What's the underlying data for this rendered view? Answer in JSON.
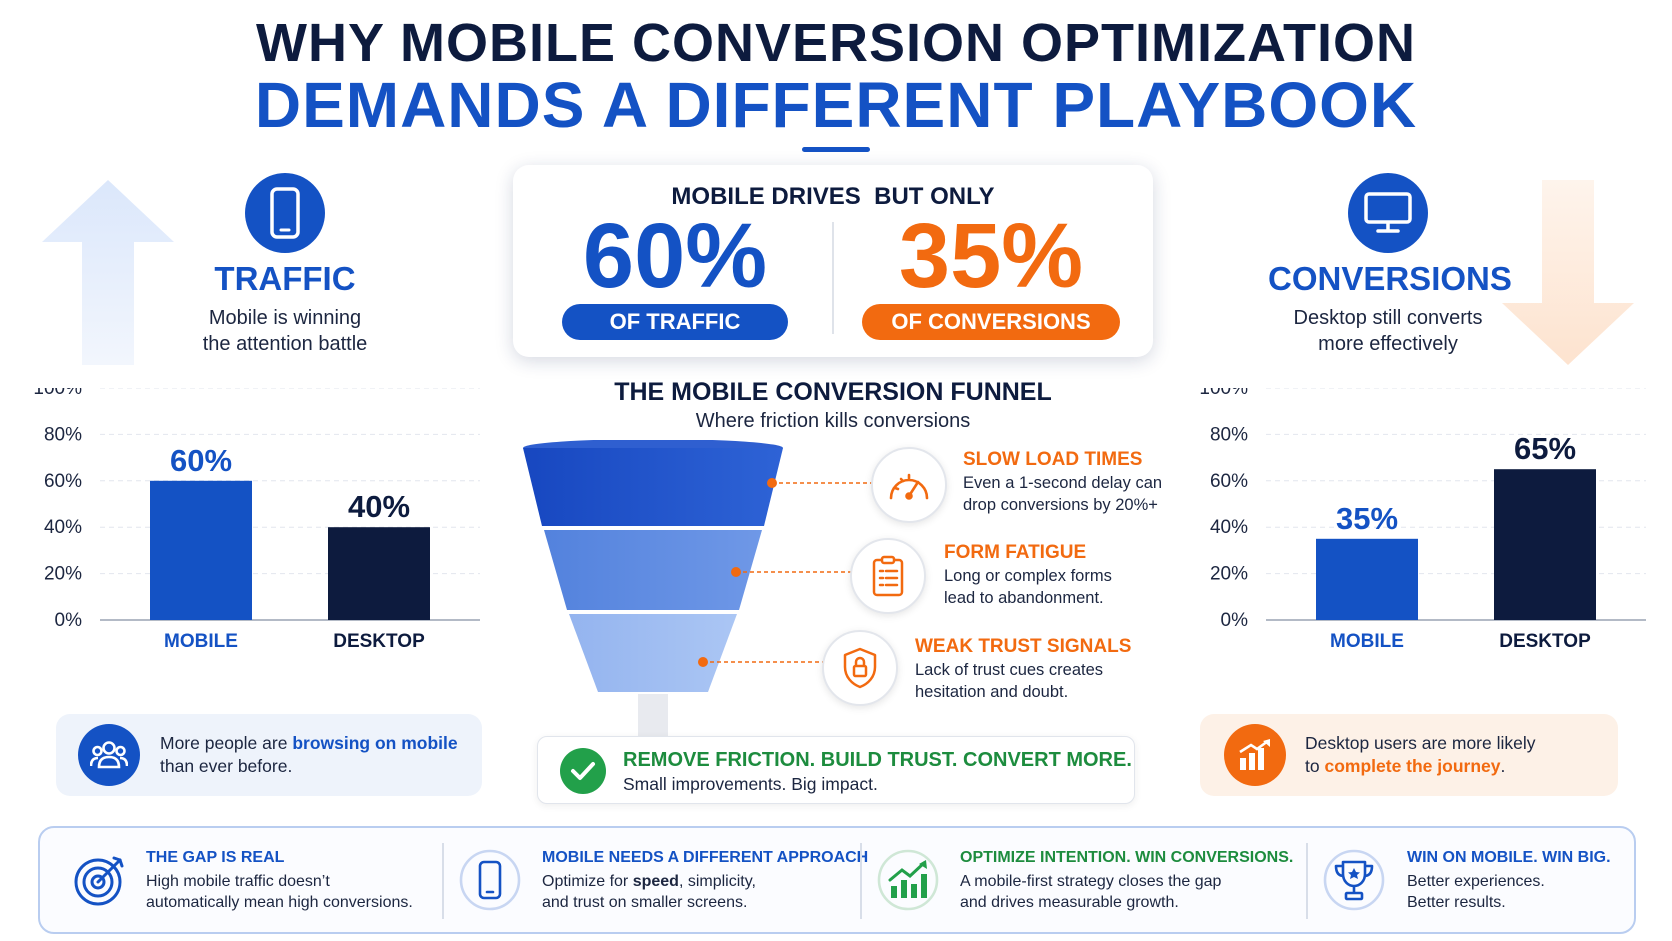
{
  "title": {
    "line1": "WHY MOBILE CONVERSION OPTIMIZATION",
    "line2": "DEMANDS A DIFFERENT PLAYBOOK"
  },
  "colors": {
    "navy": "#0d1b3e",
    "blue": "#1452c4",
    "orange": "#f26a10",
    "green": "#1d8c3e",
    "funnel_top": "#1a4fc9",
    "funnel_mid": "#5b89e0",
    "funnel_bottom": "#9ab9f0"
  },
  "traffic": {
    "icon": "smartphone-icon",
    "heading": "TRAFFIC",
    "subtitle_line1": "Mobile is winning",
    "subtitle_line2": "the attention battle"
  },
  "conversions": {
    "icon": "monitor-icon",
    "heading": "CONVERSIONS",
    "subtitle_line1": "Desktop still converts",
    "subtitle_line2": "more effectively"
  },
  "stat_card": {
    "label": "MOBILE DRIVES  BUT ONLY",
    "traffic_value": "60%",
    "traffic_pill": "OF TRAFFIC",
    "conversion_value": "35%",
    "conversion_pill": "OF CONVERSIONS"
  },
  "chart_data": [
    {
      "type": "bar",
      "categories": [
        "MOBILE",
        "DESKTOP"
      ],
      "values": [
        60,
        40
      ],
      "value_labels": [
        "60%",
        "40%"
      ],
      "bar_colors": [
        "#1452c4",
        "#0d1b3e"
      ],
      "ylim": [
        0,
        100
      ],
      "yticks": [
        "0%",
        "20%",
        "40%",
        "60%",
        "80%",
        "100%"
      ],
      "grid": true
    },
    {
      "type": "bar",
      "categories": [
        "MOBILE",
        "DESKTOP"
      ],
      "values": [
        35,
        65
      ],
      "value_labels": [
        "35%",
        "65%"
      ],
      "bar_colors": [
        "#1452c4",
        "#0d1b3e"
      ],
      "ylim": [
        0,
        100
      ],
      "yticks": [
        "0%",
        "20%",
        "40%",
        "60%",
        "80%",
        "100%"
      ],
      "grid": true
    }
  ],
  "info_left": {
    "icon": "users-icon",
    "text_before": "More people are ",
    "highlight": "browsing on mobile",
    "text_after": "than ever before."
  },
  "info_right": {
    "icon": "bar-chart-up-icon",
    "text_before": "Desktop users are more likely",
    "text_to": "to ",
    "highlight": "complete the journey",
    "text_after": "."
  },
  "funnel": {
    "title": "THE MOBILE CONVERSION FUNNEL",
    "subtitle": "Where friction kills conversions",
    "items": [
      {
        "icon": "speedometer-icon",
        "title": "SLOW LOAD TIMES",
        "desc_line1": "Even a 1-second delay can",
        "desc_line2": "drop conversions by 20%+"
      },
      {
        "icon": "clipboard-form-icon",
        "title": "FORM FATIGUE",
        "desc_line1": "Long or complex forms",
        "desc_line2": "lead to abandonment."
      },
      {
        "icon": "shield-lock-icon",
        "title": "WEAK TRUST SIGNALS",
        "desc_line1": "Lack of trust cues creates",
        "desc_line2": "hesitation and doubt."
      }
    ]
  },
  "cta": {
    "icon": "check-icon",
    "title": "REMOVE FRICTION. BUILD TRUST. CONVERT MORE.",
    "subtitle": "Small improvements. Big impact."
  },
  "bottom": [
    {
      "icon": "target-icon",
      "title": "THE GAP IS REAL",
      "desc_line1": "High mobile traffic doesn’t",
      "desc_line2": "automatically mean high conversions."
    },
    {
      "icon": "smartphone-icon",
      "title": "MOBILE NEEDS A DIFFERENT APPROACH",
      "desc_a": "Optimize for ",
      "desc_bold": "speed",
      "desc_b": ", simplicity,",
      "desc_line2": "and trust on smaller screens."
    },
    {
      "icon": "growth-chart-icon",
      "title": "OPTIMIZE INTENTION. WIN CONVERSIONS.",
      "desc_line1": "A mobile-first strategy closes the gap",
      "desc_line2": "and drives measurable growth."
    },
    {
      "icon": "trophy-icon",
      "title": "WIN ON MOBILE. WIN BIG.",
      "desc_line1": "Better experiences.",
      "desc_line2": "Better results."
    }
  ]
}
